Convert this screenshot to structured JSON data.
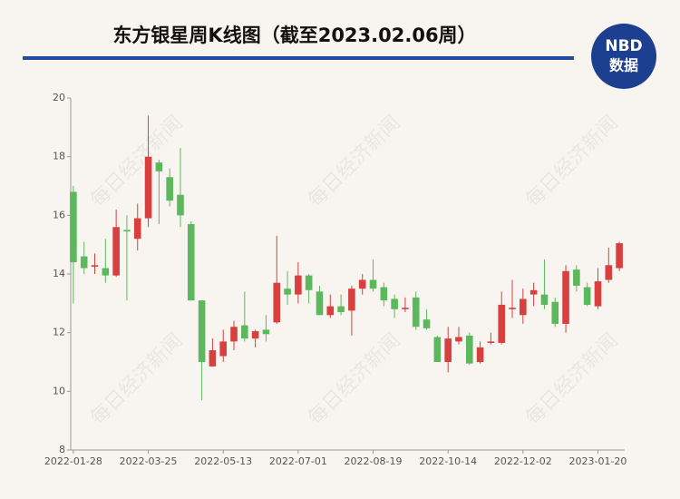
{
  "chart_data": {
    "type": "candlestick",
    "title": "东方银星周K线图（截至2023.02.06周）",
    "logo": {
      "top": "NBD",
      "bottom": "数据"
    },
    "watermark": "每日经济新闻",
    "up_color": "#d8403f",
    "down_color": "#5cb85c",
    "categories": [
      "2022-01-28",
      null,
      null,
      null,
      null,
      null,
      null,
      "2022-03-25",
      null,
      null,
      null,
      null,
      null,
      null,
      "2022-05-13",
      null,
      null,
      null,
      null,
      null,
      null,
      "2022-07-01",
      null,
      null,
      null,
      null,
      null,
      null,
      "2022-08-19",
      null,
      null,
      null,
      null,
      null,
      null,
      "2022-10-14",
      null,
      null,
      null,
      null,
      null,
      null,
      "2022-12-02",
      null,
      null,
      null,
      null,
      null,
      null,
      "2023-01-20",
      null,
      null
    ],
    "open": [
      16.8,
      14.6,
      14.25,
      14.2,
      13.95,
      15.5,
      15.2,
      15.9,
      17.8,
      17.3,
      16.7,
      15.7,
      13.1,
      10.85,
      11.2,
      11.7,
      12.25,
      11.8,
      12.1,
      12.35,
      13.5,
      13.3,
      13.95,
      13.4,
      12.6,
      12.9,
      12.75,
      13.5,
      13.8,
      13.55,
      13.15,
      12.8,
      13.2,
      12.45,
      11.85,
      11.0,
      11.7,
      11.9,
      11.0,
      11.65,
      11.65,
      12.8,
      12.6,
      13.3,
      13.3,
      13.05,
      12.3,
      14.15,
      13.55,
      12.9,
      13.8,
      14.2
    ],
    "high": [
      17.0,
      15.1,
      14.7,
      15.2,
      16.2,
      16.0,
      16.4,
      19.4,
      17.9,
      17.6,
      18.3,
      15.8,
      13.1,
      11.8,
      12.1,
      12.4,
      13.4,
      12.1,
      12.6,
      15.3,
      14.1,
      14.4,
      14.0,
      13.6,
      13.3,
      13.3,
      13.6,
      14.0,
      14.5,
      13.7,
      13.3,
      13.2,
      13.4,
      12.8,
      11.9,
      12.2,
      12.2,
      12.0,
      11.7,
      12.0,
      13.4,
      13.8,
      13.5,
      13.7,
      14.5,
      13.2,
      14.3,
      14.3,
      13.7,
      14.2,
      14.9,
      15.1
    ],
    "low": [
      13.0,
      14.0,
      14.0,
      13.7,
      13.9,
      13.1,
      14.8,
      15.6,
      15.7,
      16.3,
      15.6,
      13.1,
      9.7,
      10.85,
      11.0,
      11.4,
      11.7,
      11.5,
      11.7,
      12.3,
      12.95,
      13.0,
      13.0,
      12.6,
      12.5,
      12.6,
      11.9,
      13.3,
      13.4,
      12.9,
      12.5,
      12.7,
      12.1,
      12.1,
      11.0,
      10.65,
      11.6,
      10.9,
      10.95,
      11.6,
      11.6,
      12.5,
      12.3,
      12.9,
      12.8,
      12.2,
      12.0,
      13.4,
      12.9,
      12.8,
      13.7,
      14.1
    ],
    "close": [
      14.4,
      14.2,
      14.3,
      13.95,
      15.6,
      15.45,
      15.9,
      18.0,
      17.5,
      16.5,
      16.0,
      13.1,
      11.0,
      11.4,
      11.7,
      12.2,
      11.8,
      12.05,
      11.95,
      13.7,
      13.3,
      13.95,
      13.45,
      12.6,
      12.9,
      12.7,
      13.5,
      13.8,
      13.5,
      13.1,
      12.8,
      12.85,
      12.2,
      12.15,
      11.0,
      11.8,
      11.85,
      10.95,
      11.5,
      11.7,
      12.95,
      12.85,
      13.15,
      13.45,
      12.95,
      12.3,
      14.1,
      13.6,
      12.95,
      13.75,
      14.3,
      15.05
    ],
    "ylim": [
      8,
      20
    ],
    "yticks": [
      8,
      10,
      12,
      14,
      16,
      18,
      20
    ]
  }
}
